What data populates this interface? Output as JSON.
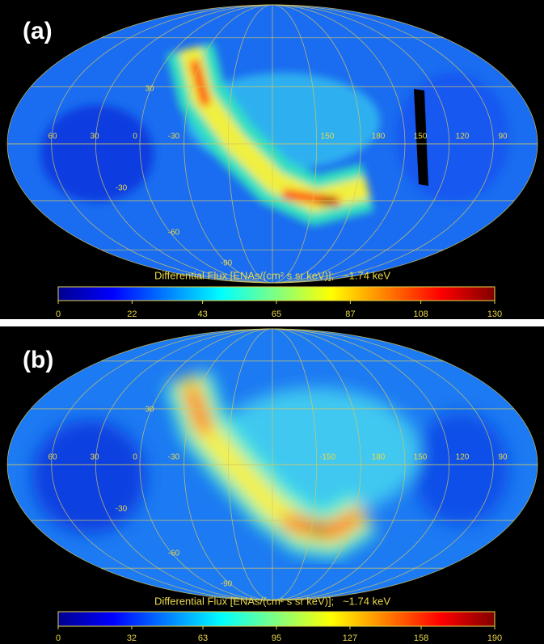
{
  "chart_data": [
    {
      "type": "sky-map",
      "panel_label": "(a)",
      "colorbar_label": "Differential Flux [ENAs/(cm² s sr keV)];   ~1.74 keV",
      "colormap": [
        "#00008f",
        "#0000ff",
        "#0080ff",
        "#00ffff",
        "#80ff80",
        "#ffff00",
        "#ff8000",
        "#ff0000",
        "#800000"
      ],
      "xlim": [
        0,
        130
      ],
      "xticks": [
        0,
        22,
        43,
        65,
        87,
        108,
        130
      ],
      "lon_labels": [
        60,
        30,
        0,
        -30,
        150,
        180,
        150,
        120,
        90
      ],
      "lat_labels": [
        30,
        -30,
        -60,
        -90
      ]
    },
    {
      "type": "sky-map",
      "panel_label": "(b)",
      "colorbar_label": "Differential Flux [ENAs/(cm² s sr keV)];   ~1.74 keV",
      "colormap": [
        "#00008f",
        "#0000ff",
        "#0080ff",
        "#00ffff",
        "#80ff80",
        "#ffff00",
        "#ff8000",
        "#ff0000",
        "#800000"
      ],
      "xlim": [
        0,
        190
      ],
      "xticks": [
        0,
        32,
        63,
        95,
        127,
        158,
        190
      ],
      "lon_labels": [
        60,
        30,
        0,
        -30,
        -150,
        180,
        150,
        120,
        90
      ],
      "lat_labels": [
        30,
        -30,
        -60,
        -90
      ]
    }
  ]
}
